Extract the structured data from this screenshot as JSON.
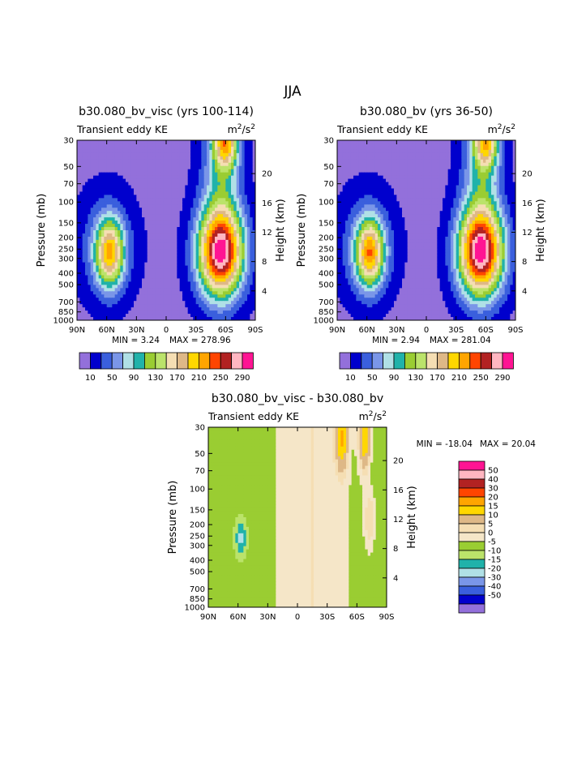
{
  "page": {
    "title": "JJA"
  },
  "chart_data": [
    {
      "type": "heatmap",
      "title": "b30.080_bv_visc (yrs 100-114)",
      "subtitle_left": "Transient eddy KE",
      "units": "m²/s²",
      "units_base": "m",
      "units_exp1": "2",
      "units_mid": "/s",
      "units_exp2": "2",
      "xlabel": "",
      "ylabel": "Pressure (mb)",
      "ylabel_right": "Height (km)",
      "x_ticks": [
        "90N",
        "60N",
        "30N",
        "0",
        "30S",
        "60S",
        "90S"
      ],
      "y_ticks": [
        "30",
        "50",
        "70",
        "100",
        "150",
        "200",
        "250",
        "300",
        "400",
        "500",
        "700",
        "850",
        "1000"
      ],
      "y_ticks_right": [
        "20",
        "16",
        "12",
        "8",
        "4"
      ],
      "min_label": "MIN =    3.24",
      "max_label": "MAX = 278.96",
      "min": 3.24,
      "max": 278.96,
      "peaks": [
        {
          "lat": -55,
          "p": 270,
          "value": 279,
          "sx": 16,
          "sy": 4.2
        },
        {
          "lat": 57,
          "p": 270,
          "value": 175,
          "sx": 10,
          "sy": 3.2
        },
        {
          "lat": -60,
          "p": 30,
          "value": 180,
          "sx": 9,
          "sy": 2.8
        }
      ],
      "colorbar_labels": [
        "10",
        "50",
        "90",
        "130",
        "170",
        "210",
        "250",
        "290"
      ]
    },
    {
      "type": "heatmap",
      "title": "b30.080_bv (yrs 36-50)",
      "subtitle_left": "Transient eddy KE",
      "units": "m²/s²",
      "units_base": "m",
      "units_exp1": "2",
      "units_mid": "/s",
      "units_exp2": "2",
      "xlabel": "",
      "ylabel": "Pressure (mb)",
      "ylabel_right": "Height (km)",
      "x_ticks": [
        "90N",
        "60N",
        "30N",
        "0",
        "30S",
        "60S",
        "90S"
      ],
      "y_ticks": [
        "30",
        "50",
        "70",
        "100",
        "150",
        "200",
        "250",
        "300",
        "400",
        "500",
        "700",
        "850",
        "1000"
      ],
      "y_ticks_right": [
        "20",
        "16",
        "12",
        "8",
        "4"
      ],
      "min_label": "MIN =    2.94",
      "max_label": "MAX = 281.04",
      "min": 2.94,
      "max": 281.04,
      "peaks": [
        {
          "lat": -55,
          "p": 270,
          "value": 281,
          "sx": 16,
          "sy": 4.2
        },
        {
          "lat": 57,
          "p": 270,
          "value": 185,
          "sx": 10,
          "sy": 3.2
        },
        {
          "lat": -60,
          "p": 30,
          "value": 170,
          "sx": 9,
          "sy": 2.8
        }
      ],
      "colorbar_labels": [
        "10",
        "50",
        "90",
        "130",
        "170",
        "210",
        "250",
        "290"
      ]
    },
    {
      "type": "heatmap",
      "title": "b30.080_bv_visc - b30.080_bv",
      "subtitle_left": "Transient eddy KE",
      "units": "m²/s²",
      "units_base": "m",
      "units_exp1": "2",
      "units_mid": "/s",
      "units_exp2": "2",
      "xlabel": "",
      "ylabel": "Pressure (mb)",
      "ylabel_right": "Height (km)",
      "x_ticks": [
        "90N",
        "60N",
        "30N",
        "0",
        "30S",
        "60S",
        "90S"
      ],
      "y_ticks": [
        "30",
        "50",
        "70",
        "100",
        "150",
        "200",
        "250",
        "300",
        "400",
        "500",
        "700",
        "850",
        "1000"
      ],
      "y_ticks_right": [
        "20",
        "16",
        "12",
        "8",
        "4"
      ],
      "min_label": "MIN = -18.04",
      "max_label": "MAX =  20.04",
      "min": -18.04,
      "max": 20.04,
      "colorbar_labels": [
        "50",
        "40",
        "30",
        "20",
        "15",
        "10",
        "5",
        "0",
        "-5",
        "-10",
        "-15",
        "-20",
        "-30",
        "-40",
        "-50"
      ]
    }
  ],
  "colors": {
    "full_scale": [
      "#9370db",
      "#0000cd",
      "#3a5fdd",
      "#7a96e8",
      "#b0e0e6",
      "#20b2aa",
      "#9acd32",
      "#bbe36a",
      "#f5deb3",
      "#deb887",
      "#ffd700",
      "#ffa500",
      "#ff4500",
      "#b22222",
      "#ffb6c1",
      "#ff1493"
    ],
    "diff_scale": [
      "#9370db",
      "#0000cd",
      "#3a5fdd",
      "#7a96e8",
      "#b0e0e6",
      "#20b2aa",
      "#bbe36a",
      "#9acd32",
      "#f5e6c8",
      "#f5deb3",
      "#deb887",
      "#ffd700",
      "#ffa500",
      "#ff4500",
      "#b22222",
      "#ffb6c1",
      "#ff1493"
    ]
  }
}
